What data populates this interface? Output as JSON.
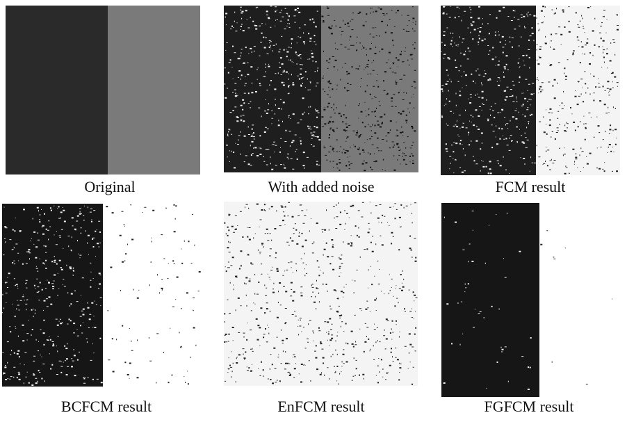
{
  "panels": [
    {
      "caption": "Original"
    },
    {
      "caption": "With added noise"
    },
    {
      "caption": "FCM result"
    },
    {
      "caption": "BCFCM result"
    },
    {
      "caption": "EnFCM result"
    },
    {
      "caption": "FGFCM result"
    }
  ]
}
